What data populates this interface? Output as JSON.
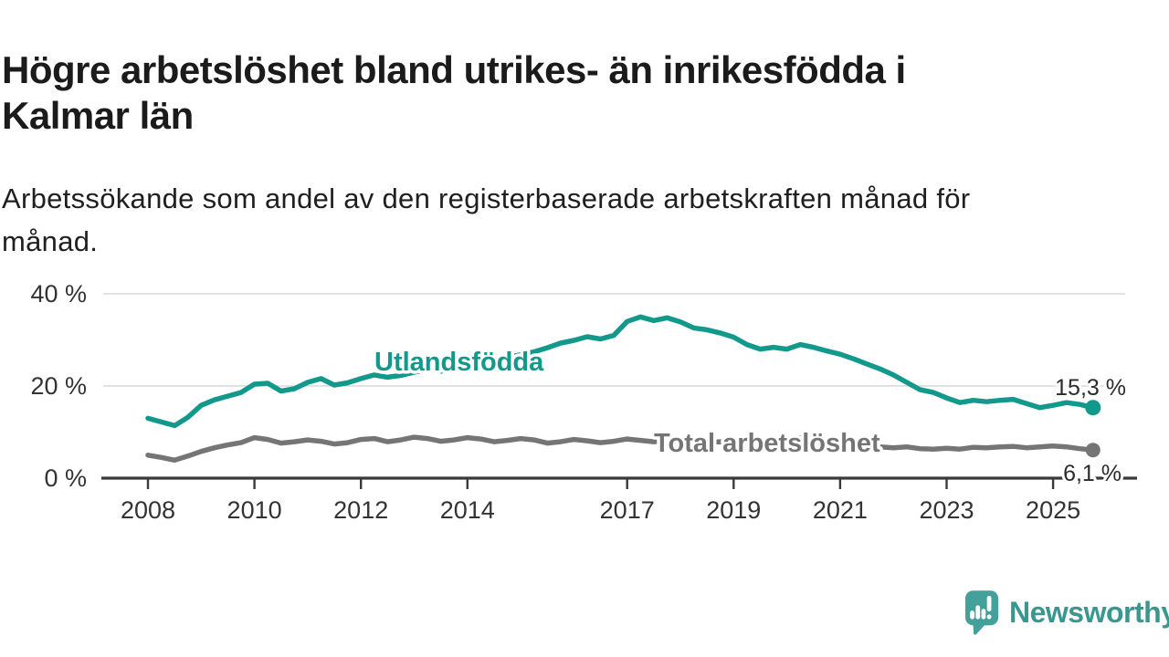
{
  "header": {
    "title": "Högre arbetslöshet bland utrikes- än inrikesfödda i Kalmar län",
    "title_lines": [
      "Högre arbetslöshet bland utrikes- än inrikesfödda i",
      "Kalmar län"
    ],
    "subtitle": "Arbetssökande som andel av den registerbaserade arbetskraften månad för månad.",
    "subtitle_lines": [
      "Arbetssökande som andel av den registerbaserade arbetskraften månad för",
      "månad."
    ]
  },
  "chart_data": {
    "type": "line",
    "title": "Högre arbetslöshet bland utrikes- än inrikesfödda i Kalmar län",
    "subtitle": "Arbetssökande som andel av den registerbaserade arbetskraften månad för månad.",
    "unit": "%",
    "x_axis": {
      "ticks": [
        2008,
        2010,
        2012,
        2014,
        2017,
        2019,
        2021,
        2023,
        2025
      ],
      "range": [
        2008,
        2025.75
      ]
    },
    "y_axis": {
      "ticks": [
        {
          "value": 0,
          "label": "0 %"
        },
        {
          "value": 20,
          "label": "20 %"
        },
        {
          "value": 40,
          "label": "40 %"
        }
      ],
      "range": [
        0,
        42
      ],
      "grid": true
    },
    "series": [
      {
        "name": "Utlandsfödda",
        "color": "#12998b",
        "end_label": "15,3 %",
        "end_value": 15.3,
        "points": [
          [
            2008.0,
            13.0
          ],
          [
            2008.25,
            12.2
          ],
          [
            2008.5,
            11.4
          ],
          [
            2008.75,
            13.2
          ],
          [
            2009.0,
            15.8
          ],
          [
            2009.25,
            17.0
          ],
          [
            2009.5,
            17.8
          ],
          [
            2009.75,
            18.6
          ],
          [
            2010.0,
            20.4
          ],
          [
            2010.25,
            20.6
          ],
          [
            2010.5,
            18.9
          ],
          [
            2010.75,
            19.4
          ],
          [
            2011.0,
            20.8
          ],
          [
            2011.25,
            21.6
          ],
          [
            2011.5,
            20.2
          ],
          [
            2011.75,
            20.7
          ],
          [
            2012.0,
            21.6
          ],
          [
            2012.25,
            22.4
          ],
          [
            2012.5,
            21.9
          ],
          [
            2012.75,
            22.3
          ],
          [
            2013.0,
            23.0
          ],
          [
            2013.25,
            23.6
          ],
          [
            2013.5,
            23.2
          ],
          [
            2013.75,
            23.8
          ],
          [
            2014.0,
            24.5
          ],
          [
            2014.25,
            25.2
          ],
          [
            2014.5,
            25.8
          ],
          [
            2014.75,
            26.2
          ],
          [
            2015.0,
            26.8
          ],
          [
            2015.25,
            27.4
          ],
          [
            2015.5,
            28.3
          ],
          [
            2015.75,
            29.3
          ],
          [
            2016.0,
            29.9
          ],
          [
            2016.25,
            30.7
          ],
          [
            2016.5,
            30.2
          ],
          [
            2016.75,
            31.0
          ],
          [
            2017.0,
            34.0
          ],
          [
            2017.25,
            35.0
          ],
          [
            2017.5,
            34.2
          ],
          [
            2017.75,
            34.8
          ],
          [
            2018.0,
            33.9
          ],
          [
            2018.25,
            32.6
          ],
          [
            2018.5,
            32.2
          ],
          [
            2018.75,
            31.5
          ],
          [
            2019.0,
            30.6
          ],
          [
            2019.25,
            29.0
          ],
          [
            2019.5,
            28.0
          ],
          [
            2019.75,
            28.4
          ],
          [
            2020.0,
            28.0
          ],
          [
            2020.25,
            29.0
          ],
          [
            2020.5,
            28.4
          ],
          [
            2020.75,
            27.6
          ],
          [
            2021.0,
            26.9
          ],
          [
            2021.25,
            25.9
          ],
          [
            2021.5,
            24.8
          ],
          [
            2021.75,
            23.7
          ],
          [
            2022.0,
            22.4
          ],
          [
            2022.25,
            20.8
          ],
          [
            2022.5,
            19.2
          ],
          [
            2022.75,
            18.6
          ],
          [
            2023.0,
            17.4
          ],
          [
            2023.25,
            16.4
          ],
          [
            2023.5,
            16.9
          ],
          [
            2023.75,
            16.6
          ],
          [
            2024.0,
            16.9
          ],
          [
            2024.25,
            17.1
          ],
          [
            2024.5,
            16.2
          ],
          [
            2024.75,
            15.3
          ],
          [
            2025.0,
            15.8
          ],
          [
            2025.25,
            16.4
          ],
          [
            2025.5,
            16.0
          ],
          [
            2025.75,
            15.3
          ]
        ]
      },
      {
        "name": "Total arbetslöshet",
        "color": "#757575",
        "end_label": "6,1 %",
        "end_value": 6.1,
        "points": [
          [
            2008.0,
            5.0
          ],
          [
            2008.25,
            4.5
          ],
          [
            2008.5,
            3.9
          ],
          [
            2008.75,
            4.8
          ],
          [
            2009.0,
            5.8
          ],
          [
            2009.25,
            6.6
          ],
          [
            2009.5,
            7.2
          ],
          [
            2009.75,
            7.7
          ],
          [
            2010.0,
            8.8
          ],
          [
            2010.25,
            8.4
          ],
          [
            2010.5,
            7.6
          ],
          [
            2010.75,
            7.9
          ],
          [
            2011.0,
            8.3
          ],
          [
            2011.25,
            8.0
          ],
          [
            2011.5,
            7.4
          ],
          [
            2011.75,
            7.7
          ],
          [
            2012.0,
            8.4
          ],
          [
            2012.25,
            8.6
          ],
          [
            2012.5,
            7.9
          ],
          [
            2012.75,
            8.3
          ],
          [
            2013.0,
            8.9
          ],
          [
            2013.25,
            8.6
          ],
          [
            2013.5,
            8.0
          ],
          [
            2013.75,
            8.3
          ],
          [
            2014.0,
            8.8
          ],
          [
            2014.25,
            8.5
          ],
          [
            2014.5,
            7.9
          ],
          [
            2014.75,
            8.2
          ],
          [
            2015.0,
            8.6
          ],
          [
            2015.25,
            8.3
          ],
          [
            2015.5,
            7.6
          ],
          [
            2015.75,
            7.9
          ],
          [
            2016.0,
            8.4
          ],
          [
            2016.25,
            8.1
          ],
          [
            2016.5,
            7.7
          ],
          [
            2016.75,
            8.0
          ],
          [
            2017.0,
            8.5
          ],
          [
            2017.25,
            8.2
          ],
          [
            2017.5,
            7.9
          ],
          [
            2017.75,
            8.1
          ],
          [
            2018.0,
            8.3
          ],
          [
            2018.25,
            8.0
          ],
          [
            2018.5,
            7.7
          ],
          [
            2018.75,
            7.9
          ],
          [
            2019.0,
            8.0
          ],
          [
            2019.25,
            7.8
          ],
          [
            2019.5,
            7.6
          ],
          [
            2019.75,
            7.8
          ],
          [
            2020.0,
            8.0
          ],
          [
            2020.25,
            8.8
          ],
          [
            2020.5,
            8.6
          ],
          [
            2020.75,
            8.2
          ],
          [
            2021.0,
            7.9
          ],
          [
            2021.25,
            7.5
          ],
          [
            2021.5,
            7.1
          ],
          [
            2021.75,
            6.8
          ],
          [
            2022.0,
            6.6
          ],
          [
            2022.25,
            6.8
          ],
          [
            2022.5,
            6.4
          ],
          [
            2022.75,
            6.3
          ],
          [
            2023.0,
            6.5
          ],
          [
            2023.25,
            6.3
          ],
          [
            2023.5,
            6.7
          ],
          [
            2023.75,
            6.6
          ],
          [
            2024.0,
            6.8
          ],
          [
            2024.25,
            6.9
          ],
          [
            2024.5,
            6.6
          ],
          [
            2024.75,
            6.8
          ],
          [
            2025.0,
            7.0
          ],
          [
            2025.25,
            6.8
          ],
          [
            2025.5,
            6.4
          ],
          [
            2025.75,
            6.1
          ]
        ]
      }
    ],
    "legend_position": "inline-labels",
    "annotations": [
      "15,3 %",
      "6,1 %"
    ]
  },
  "footer": {
    "brand": "Newsworthy",
    "logo_icon": "chart-speech-bubble-icon",
    "brand_color": "#3a968f",
    "icon_color": "#44a09a"
  }
}
